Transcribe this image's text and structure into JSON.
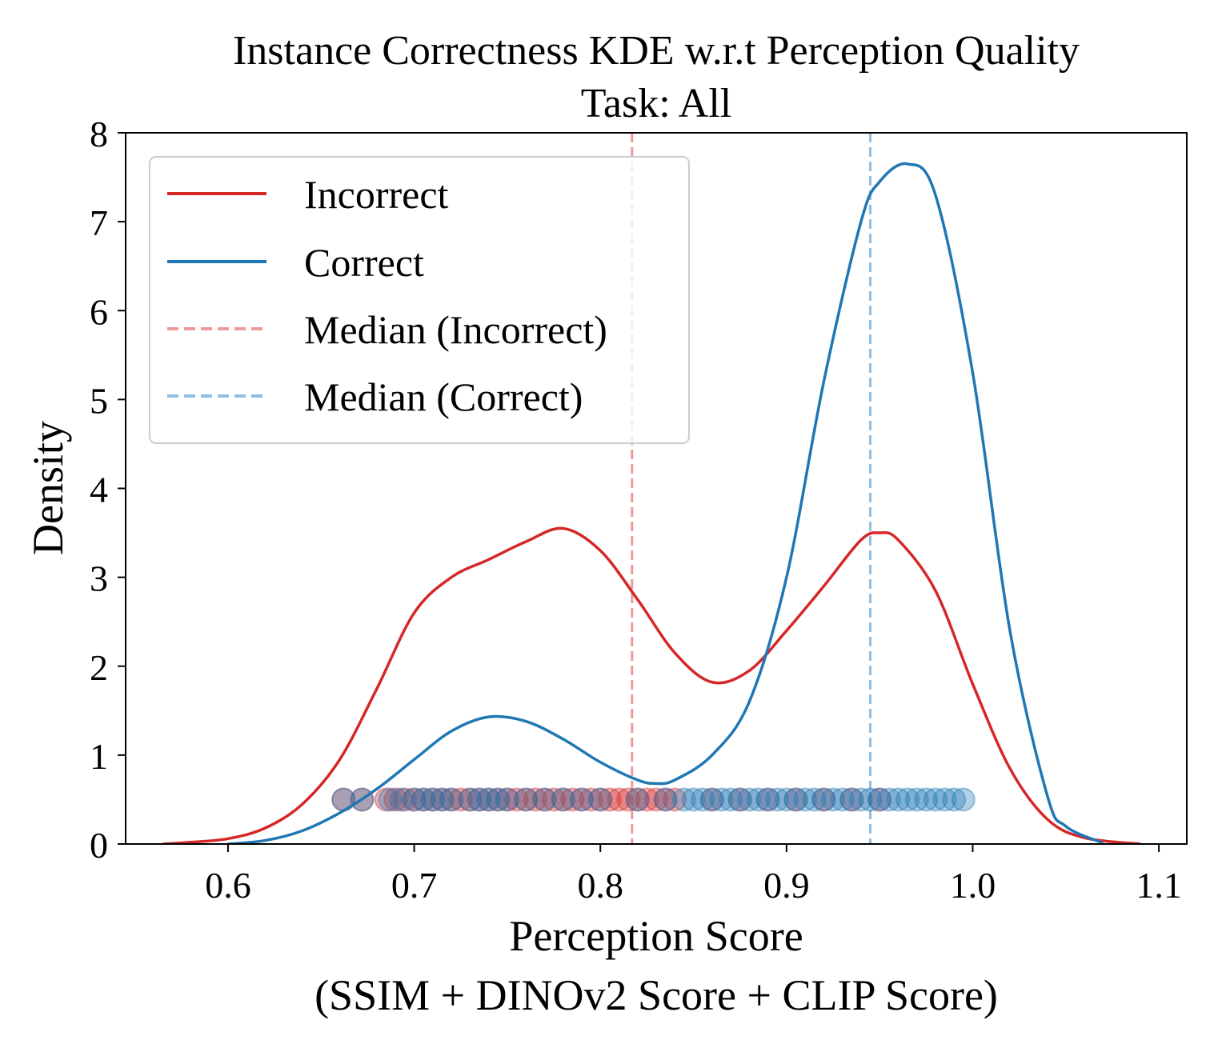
{
  "chart_data": {
    "type": "line",
    "title": "Instance Correctness KDE w.r.t Perception Quality",
    "subtitle": "Task: All",
    "xlabel": "Perception Score",
    "xlabel_line2": "(SSIM + DINOv2 Score + CLIP Score)",
    "ylabel": "Density",
    "xlim": [
      0.545,
      1.115
    ],
    "ylim": [
      0,
      8
    ],
    "xticks": [
      "0.6",
      "0.7",
      "0.8",
      "0.9",
      "1.0",
      "1.1"
    ],
    "yticks": [
      "0",
      "1",
      "2",
      "3",
      "4",
      "5",
      "6",
      "7",
      "8"
    ],
    "grid": false,
    "legend_position": "top-left",
    "series": [
      {
        "name": "Incorrect",
        "color": "#d62728",
        "style": "solid",
        "x": [
          0.565,
          0.58,
          0.6,
          0.62,
          0.64,
          0.66,
          0.68,
          0.7,
          0.72,
          0.74,
          0.76,
          0.78,
          0.8,
          0.82,
          0.84,
          0.86,
          0.88,
          0.9,
          0.92,
          0.94,
          0.95,
          0.96,
          0.98,
          1.0,
          1.02,
          1.04,
          1.06,
          1.09
        ],
        "y": [
          0.0,
          0.02,
          0.06,
          0.18,
          0.45,
          0.95,
          1.75,
          2.6,
          3.0,
          3.2,
          3.4,
          3.55,
          3.3,
          2.75,
          2.15,
          1.82,
          1.95,
          2.4,
          2.9,
          3.42,
          3.5,
          3.42,
          2.85,
          1.8,
          0.85,
          0.28,
          0.07,
          0.0
        ]
      },
      {
        "name": "Correct",
        "color": "#1f77b4",
        "style": "solid",
        "x": [
          0.6,
          0.62,
          0.64,
          0.66,
          0.68,
          0.7,
          0.72,
          0.74,
          0.76,
          0.78,
          0.8,
          0.82,
          0.83,
          0.84,
          0.86,
          0.88,
          0.9,
          0.92,
          0.94,
          0.95,
          0.965,
          0.98,
          1.0,
          1.02,
          1.04,
          1.05,
          1.07
        ],
        "y": [
          0.0,
          0.04,
          0.15,
          0.35,
          0.62,
          0.95,
          1.27,
          1.43,
          1.38,
          1.18,
          0.92,
          0.72,
          0.68,
          0.72,
          1.0,
          1.6,
          3.0,
          5.2,
          7.0,
          7.45,
          7.65,
          7.3,
          5.3,
          2.4,
          0.55,
          0.2,
          0.01
        ]
      },
      {
        "name": "Median (Incorrect)",
        "color": "#ef9a9a",
        "style": "dashed",
        "x_value": 0.817
      },
      {
        "name": "Median (Correct)",
        "color": "#90bfe0",
        "style": "dashed",
        "x_value": 0.945
      }
    ],
    "scatter": {
      "y_level": 0.5,
      "incorrect_color": "#d62728",
      "correct_color": "#1f77b4",
      "incorrect_x": [
        0.662,
        0.672,
        0.685,
        0.69,
        0.695,
        0.7,
        0.705,
        0.71,
        0.715,
        0.72,
        0.725,
        0.73,
        0.735,
        0.74,
        0.745,
        0.75,
        0.755,
        0.76,
        0.765,
        0.77,
        0.775,
        0.78,
        0.785,
        0.79,
        0.795,
        0.8,
        0.805,
        0.81,
        0.815,
        0.82,
        0.825,
        0.83,
        0.835,
        0.84,
        0.86,
        0.875,
        0.89,
        0.905,
        0.92,
        0.935,
        0.95
      ],
      "correct_x": [
        0.662,
        0.672,
        0.687,
        0.693,
        0.7,
        0.705,
        0.71,
        0.715,
        0.72,
        0.73,
        0.735,
        0.74,
        0.745,
        0.75,
        0.76,
        0.77,
        0.78,
        0.79,
        0.8,
        0.82,
        0.835,
        0.845,
        0.85,
        0.855,
        0.86,
        0.865,
        0.87,
        0.875,
        0.88,
        0.885,
        0.89,
        0.895,
        0.9,
        0.905,
        0.91,
        0.915,
        0.92,
        0.925,
        0.93,
        0.935,
        0.94,
        0.945,
        0.95,
        0.955,
        0.96,
        0.965,
        0.97,
        0.975,
        0.98,
        0.985,
        0.99,
        0.995
      ]
    }
  }
}
